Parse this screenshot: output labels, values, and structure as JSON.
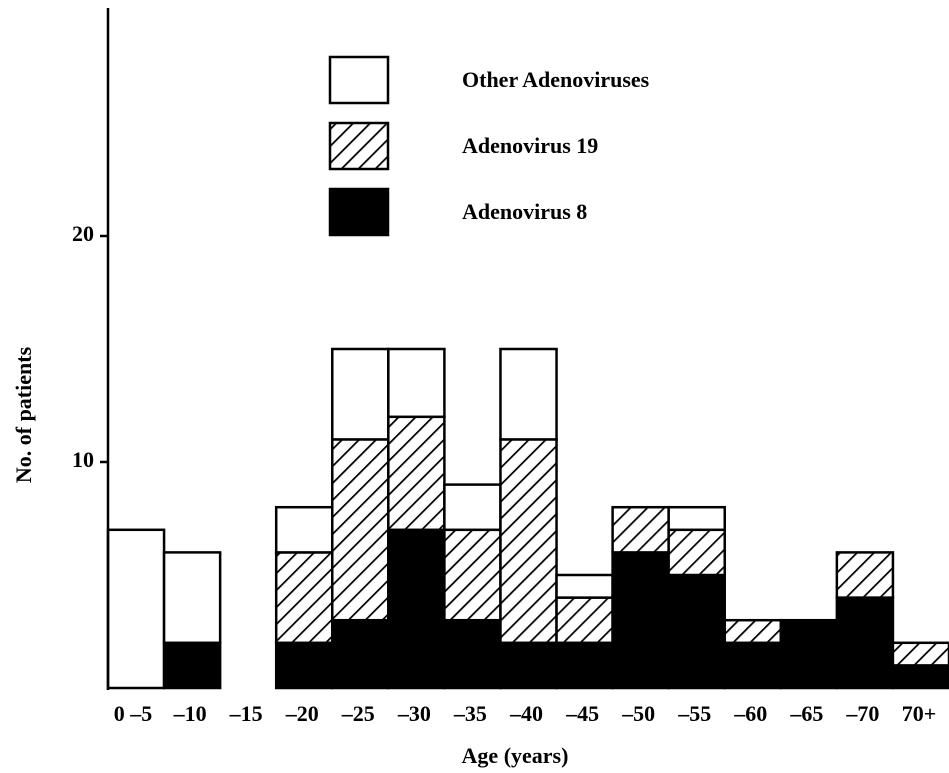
{
  "chart_data": {
    "type": "bar",
    "stacked": true,
    "x_label": "Age (years)",
    "y_label": "No. of patients",
    "categories": [
      "0 –5",
      "–10",
      "–15",
      "–20",
      "–25",
      "–30",
      "–35",
      "–40",
      "–45",
      "–50",
      "–55",
      "–60",
      "–65",
      "–70",
      "70+"
    ],
    "series": [
      {
        "name": "Adenovirus 8",
        "color": "#000000",
        "values": [
          0,
          2,
          0,
          2,
          3,
          7,
          3,
          2,
          2,
          6,
          5,
          2,
          3,
          4,
          1
        ]
      },
      {
        "name": "Adenovirus 19",
        "color": "#ffffff",
        "pattern": "hatch",
        "values": [
          0,
          0,
          0,
          4,
          8,
          5,
          4,
          9,
          2,
          2,
          2,
          1,
          0,
          2,
          1
        ]
      },
      {
        "name": "Other Adenoviruses",
        "color": "#ffffff",
        "values": [
          7,
          4,
          0,
          2,
          4,
          3,
          2,
          4,
          1,
          0,
          1,
          0,
          0,
          0,
          0
        ]
      }
    ],
    "ylim": [
      0,
      30
    ],
    "yticks": [
      10,
      20
    ],
    "grid": false
  }
}
